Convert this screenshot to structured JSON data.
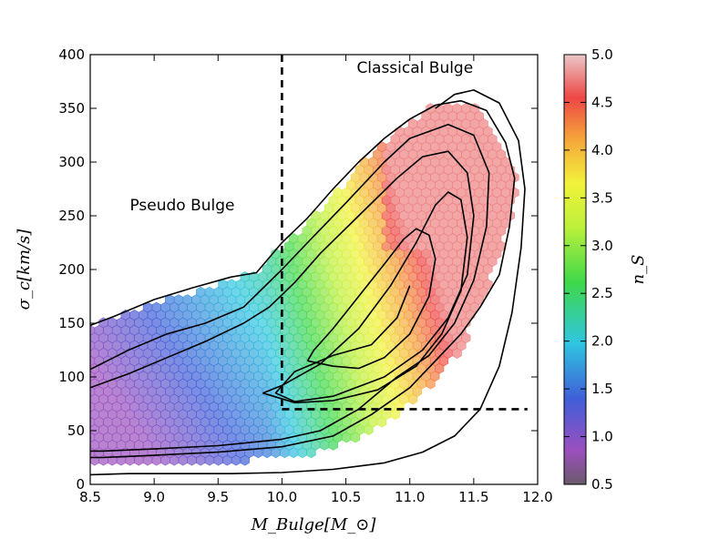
{
  "chart_data": {
    "type": "hexbin",
    "title": "",
    "xlabel": "M_Bulge[M_⊙]",
    "ylabel": "σ_c[km/s]",
    "colorbar_label": "n_S",
    "xlim": [
      8.5,
      12.0
    ],
    "ylim": [
      0,
      400
    ],
    "xticks": [
      "8.5",
      "9.0",
      "9.5",
      "10.0",
      "10.5",
      "11.0",
      "11.5",
      "12.0"
    ],
    "yticks": [
      "0",
      "50",
      "100",
      "150",
      "200",
      "250",
      "300",
      "350",
      "400"
    ],
    "colorbar_range": [
      0.5,
      5.0
    ],
    "colorbar_ticks": [
      "0.5",
      "1.0",
      "1.5",
      "2.0",
      "2.5",
      "3.0",
      "3.5",
      "4.0",
      "4.5",
      "5.0"
    ],
    "annotations": [
      {
        "text": "Classical Bulge",
        "x": 11.04,
        "y": 383
      },
      {
        "text": "Pseudo Bulge",
        "x": 9.22,
        "y": 255
      }
    ],
    "divider_lines": [
      {
        "style": "dashed",
        "points": [
          [
            10.0,
            400
          ],
          [
            10.0,
            70
          ]
        ]
      },
      {
        "style": "dashed",
        "points": [
          [
            10.0,
            70
          ],
          [
            11.92,
            70
          ]
        ]
      }
    ],
    "contours": [
      {
        "points": [
          [
            8.5,
            148
          ],
          [
            8.7,
            157
          ],
          [
            9.0,
            172
          ],
          [
            9.3,
            183
          ],
          [
            9.6,
            193
          ],
          [
            9.8,
            197
          ],
          [
            10.0,
            225
          ],
          [
            10.2,
            248
          ],
          [
            10.4,
            275
          ],
          [
            10.6,
            300
          ],
          [
            10.8,
            322
          ],
          [
            11.0,
            340
          ],
          [
            11.2,
            353
          ],
          [
            11.4,
            357
          ],
          [
            11.6,
            348
          ],
          [
            11.75,
            318
          ],
          [
            11.82,
            285
          ],
          [
            11.78,
            240
          ],
          [
            11.7,
            195
          ],
          [
            11.55,
            165
          ],
          [
            11.4,
            140
          ],
          [
            11.2,
            115
          ],
          [
            11.0,
            90
          ],
          [
            10.7,
            65
          ],
          [
            10.4,
            45
          ],
          [
            10.0,
            35
          ],
          [
            9.5,
            30
          ],
          [
            9.0,
            27
          ],
          [
            8.6,
            25
          ],
          [
            8.5,
            25
          ]
        ]
      },
      {
        "points": [
          [
            8.5,
            107
          ],
          [
            8.8,
            125
          ],
          [
            9.1,
            140
          ],
          [
            9.4,
            150
          ],
          [
            9.7,
            165
          ],
          [
            10.0,
            200
          ],
          [
            10.2,
            225
          ],
          [
            10.5,
            262
          ],
          [
            10.8,
            300
          ],
          [
            11.0,
            322
          ],
          [
            11.3,
            335
          ],
          [
            11.5,
            325
          ],
          [
            11.62,
            290
          ],
          [
            11.6,
            240
          ],
          [
            11.5,
            190
          ],
          [
            11.35,
            150
          ],
          [
            11.15,
            120
          ],
          [
            10.9,
            100
          ],
          [
            10.6,
            70
          ],
          [
            10.3,
            50
          ],
          [
            10.0,
            42
          ],
          [
            9.5,
            36
          ],
          [
            9.0,
            33
          ],
          [
            8.6,
            31
          ],
          [
            8.5,
            31
          ]
        ]
      },
      {
        "points": [
          [
            8.5,
            90
          ],
          [
            8.8,
            103
          ],
          [
            9.1,
            118
          ],
          [
            9.4,
            133
          ],
          [
            9.7,
            150
          ],
          [
            9.9,
            165
          ],
          [
            10.1,
            188
          ],
          [
            10.3,
            215
          ],
          [
            10.6,
            250
          ],
          [
            10.9,
            285
          ],
          [
            11.1,
            305
          ],
          [
            11.3,
            310
          ],
          [
            11.45,
            290
          ],
          [
            11.5,
            250
          ],
          [
            11.45,
            195
          ],
          [
            11.3,
            155
          ],
          [
            11.1,
            125
          ],
          [
            10.8,
            100
          ],
          [
            10.4,
            82
          ],
          [
            10.1,
            77
          ],
          [
            9.95,
            85
          ],
          [
            10.1,
            105
          ],
          [
            10.4,
            120
          ],
          [
            10.7,
            130
          ],
          [
            10.9,
            155
          ],
          [
            11.0,
            185
          ]
        ]
      },
      {
        "points": [
          [
            9.85,
            85
          ],
          [
            10.0,
            92
          ],
          [
            10.3,
            112
          ],
          [
            10.6,
            145
          ],
          [
            10.85,
            185
          ],
          [
            11.05,
            225
          ],
          [
            11.2,
            260
          ],
          [
            11.3,
            272
          ],
          [
            11.4,
            265
          ],
          [
            11.45,
            230
          ],
          [
            11.4,
            180
          ],
          [
            11.25,
            140
          ],
          [
            11.05,
            110
          ],
          [
            10.75,
            88
          ],
          [
            10.4,
            78
          ],
          [
            10.1,
            76
          ],
          [
            9.85,
            85
          ]
        ]
      },
      {
        "points": [
          [
            10.2,
            115
          ],
          [
            10.25,
            125
          ],
          [
            10.4,
            145
          ],
          [
            10.6,
            175
          ],
          [
            10.8,
            205
          ],
          [
            10.95,
            228
          ],
          [
            11.05,
            238
          ],
          [
            11.15,
            232
          ],
          [
            11.2,
            210
          ],
          [
            11.15,
            175
          ],
          [
            11.0,
            140
          ],
          [
            10.8,
            118
          ],
          [
            10.6,
            108
          ],
          [
            10.4,
            110
          ],
          [
            10.2,
            115
          ]
        ]
      },
      {
        "points": [
          [
            8.5,
            9
          ],
          [
            8.8,
            10
          ],
          [
            9.2,
            10
          ],
          [
            9.6,
            10
          ],
          [
            10.0,
            11
          ],
          [
            10.4,
            14
          ],
          [
            10.8,
            20
          ],
          [
            11.1,
            30
          ],
          [
            11.35,
            45
          ],
          [
            11.55,
            70
          ],
          [
            11.7,
            110
          ],
          [
            11.8,
            160
          ],
          [
            11.87,
            220
          ],
          [
            11.9,
            275
          ],
          [
            11.85,
            320
          ],
          [
            11.7,
            355
          ],
          [
            11.5,
            367
          ],
          [
            11.35,
            363
          ],
          [
            11.2,
            350
          ]
        ]
      }
    ],
    "contour_count": 6,
    "colormap": "spectral (purple→blue→cyan→green→yellow→orange→red)",
    "colors": {
      "low": "#9b4fbf",
      "blue": "#3f5fd8",
      "cyan": "#2fc6e0",
      "green": "#3fd84a",
      "yellow": "#f2f23a",
      "orange": "#f5a83a",
      "high": "#ee4646",
      "max": "#ebc8c8",
      "min": "#6b5a6b"
    }
  }
}
